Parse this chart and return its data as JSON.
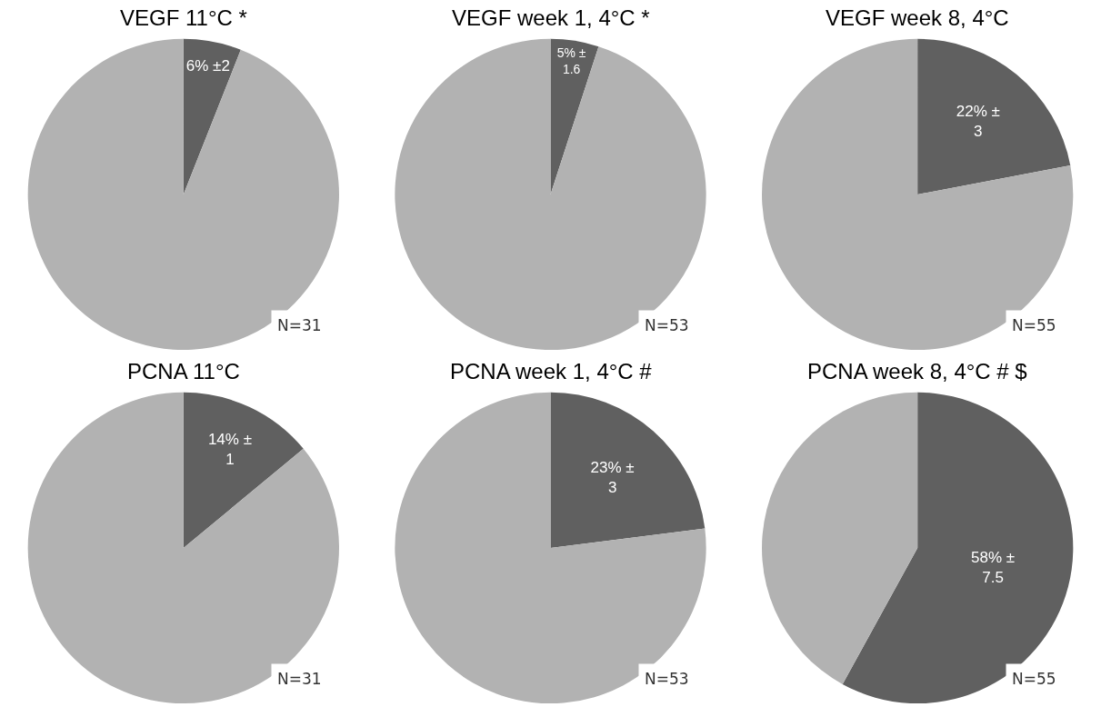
{
  "chart_data": [
    {
      "type": "pie",
      "title": "VEGF 11°C *",
      "categories": [
        null,
        null
      ],
      "values": [
        6,
        94
      ],
      "colors": [
        "#606060",
        "#b2b2b2"
      ],
      "value_labels": [
        "6% ±2",
        null
      ],
      "annotations": [
        "N=31"
      ]
    },
    {
      "type": "pie",
      "title": "VEGF week 1, 4°C *",
      "categories": [
        null,
        null
      ],
      "values": [
        5,
        95
      ],
      "colors": [
        "#606060",
        "#b2b2b2"
      ],
      "value_labels": [
        "5% ± 1.6",
        null
      ],
      "annotations": [
        "N=53"
      ]
    },
    {
      "type": "pie",
      "title": "VEGF week 8, 4°C",
      "categories": [
        null,
        null
      ],
      "values": [
        22,
        78
      ],
      "colors": [
        "#606060",
        "#b2b2b2"
      ],
      "value_labels": [
        "22% ± 3",
        null
      ],
      "annotations": [
        "N=55"
      ]
    },
    {
      "type": "pie",
      "title": "PCNA 11°C",
      "categories": [
        null,
        null
      ],
      "values": [
        14,
        86
      ],
      "colors": [
        "#606060",
        "#b2b2b2"
      ],
      "value_labels": [
        "14% ± 1",
        null
      ],
      "annotations": [
        "N=31"
      ]
    },
    {
      "type": "pie",
      "title": "PCNA week 1, 4°C #",
      "categories": [
        null,
        null
      ],
      "values": [
        23,
        77
      ],
      "colors": [
        "#606060",
        "#b2b2b2"
      ],
      "value_labels": [
        "23% ± 3",
        null
      ],
      "annotations": [
        "N=53"
      ]
    },
    {
      "type": "pie",
      "title": "PCNA week 8, 4°C # $",
      "categories": [
        null,
        null
      ],
      "values": [
        58,
        42
      ],
      "colors": [
        "#606060",
        "#b2b2b2"
      ],
      "value_labels": [
        "58% ± 7.5",
        null
      ],
      "annotations": [
        "N=55"
      ]
    }
  ]
}
